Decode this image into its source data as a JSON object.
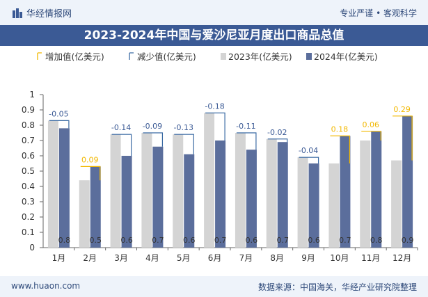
{
  "header": {
    "brand": "华经情报网",
    "slogan_left": "专业严谨",
    "slogan_right": "客观科学"
  },
  "footer": {
    "website": "www.huaon.com",
    "source": "数据来源：中国海关，华经产业研究院整理"
  },
  "colors": {
    "bar2023": "#d4d4d4",
    "bar2024": "#5b6e9c",
    "increase": "#f2b800",
    "decrease": "#3a6aa3",
    "increase_label": "#f2b800",
    "decrease_label": "#3b5a95",
    "title_bg": "#3b5a95"
  },
  "chart_data": {
    "type": "bar",
    "title": "2023-2024年中国与爱沙尼亚月度出口商品总值",
    "categories": [
      "1月",
      "2月",
      "3月",
      "4月",
      "5月",
      "6月",
      "7月",
      "8月",
      "9月",
      "10月",
      "11月",
      "12月"
    ],
    "series": [
      {
        "name": "2023年(亿美元)",
        "values": [
          0.83,
          0.44,
          0.74,
          0.75,
          0.74,
          0.88,
          0.75,
          0.71,
          0.59,
          0.55,
          0.7,
          0.57
        ]
      },
      {
        "name": "2024年(亿美元)",
        "values": [
          0.78,
          0.53,
          0.6,
          0.66,
          0.61,
          0.7,
          0.64,
          0.69,
          0.55,
          0.73,
          0.76,
          0.86
        ]
      }
    ],
    "legend": [
      "增加值(亿美元)",
      "减少值(亿美元)",
      "2023年(亿美元)",
      "2024年(亿美元)"
    ],
    "change_labels": [
      "-0.05",
      "0.09",
      "-0.14",
      "-0.09",
      "-0.13",
      "-0.18",
      "-0.11",
      "-0.02",
      "-0.04",
      "0.18",
      "0.06",
      "0.29"
    ],
    "bar_value_labels": [
      "0.8",
      "0.5",
      "0.6",
      "0.7",
      "0.6",
      "0.7",
      "0.6",
      "0.7",
      "0.6",
      "0.7",
      "0.8",
      "0.9"
    ],
    "yticks": [
      "0",
      "0.1",
      "0.2",
      "0.3",
      "0.4",
      "0.5",
      "0.6",
      "0.7",
      "0.8",
      "0.9",
      "1"
    ],
    "ylim": [
      0,
      1
    ],
    "legend_position": "top"
  }
}
